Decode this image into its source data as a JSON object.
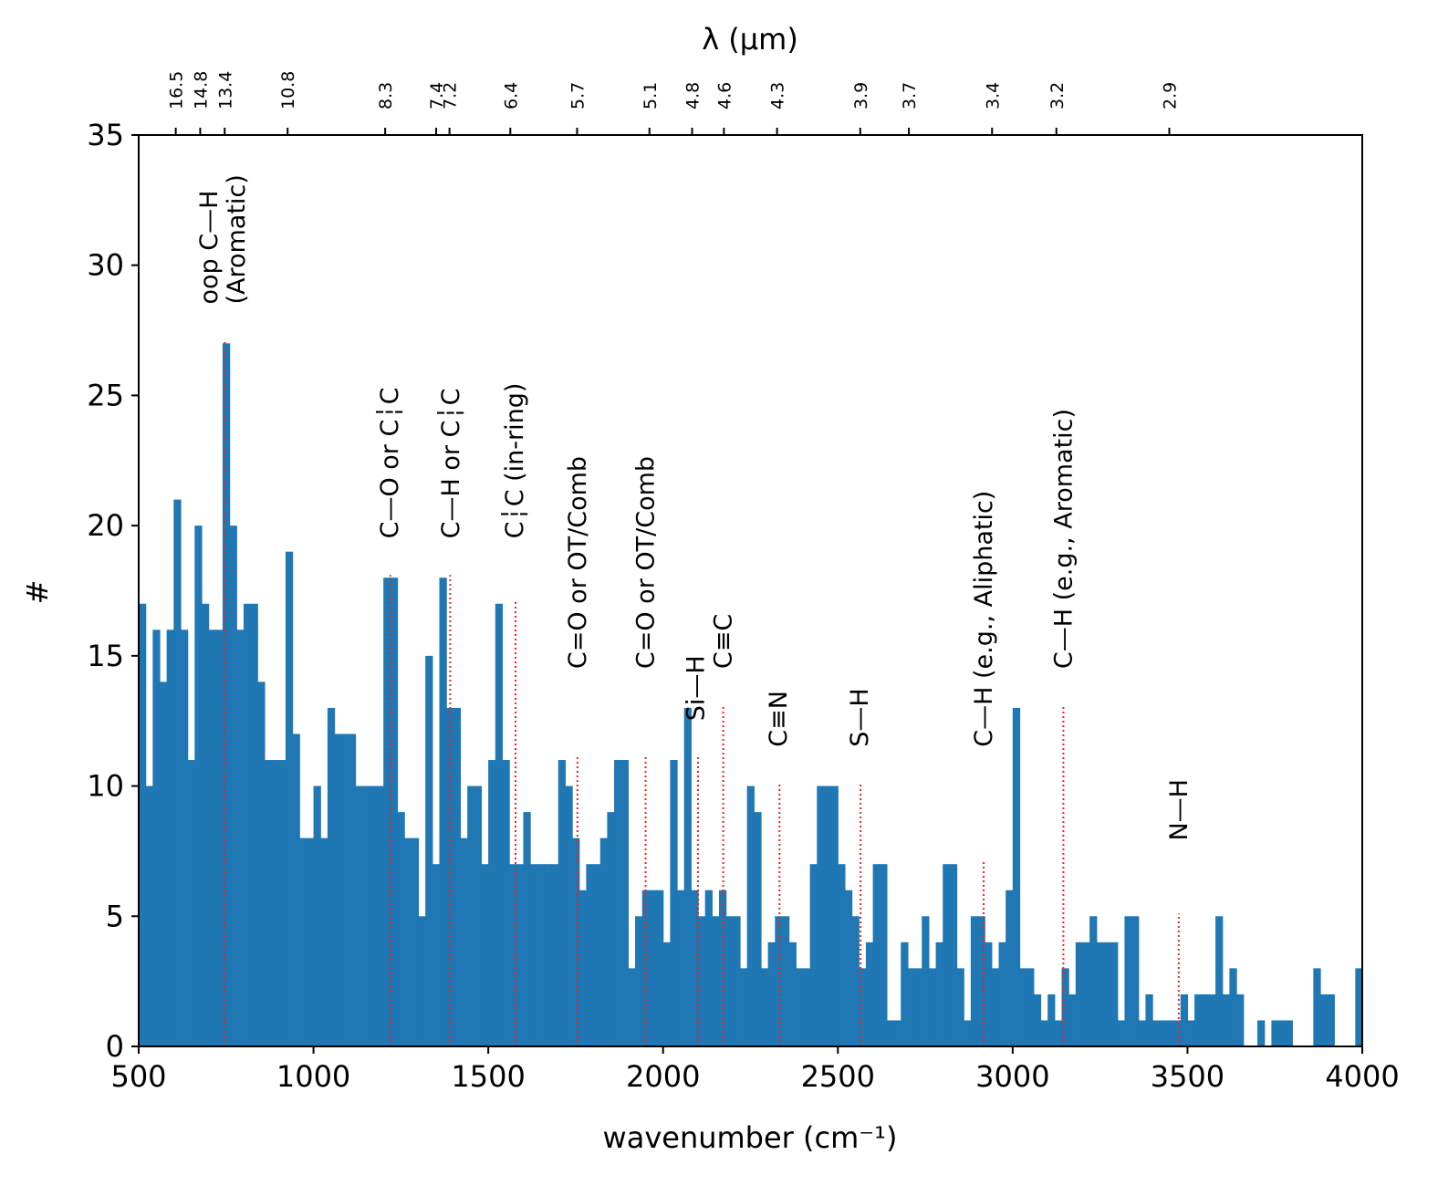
{
  "chart_data": {
    "type": "bar",
    "xlabel": "wavenumber (cm⁻¹)",
    "ylabel": "#",
    "top_xlabel": "λ (μm)",
    "xlim": [
      500,
      4000
    ],
    "ylim": [
      0,
      35
    ],
    "bin_width": 20,
    "x_ticks": [
      500,
      1000,
      1500,
      2000,
      2500,
      3000,
      3500,
      4000
    ],
    "x_tick_labels": [
      "500",
      "1000",
      "1500",
      "2000",
      "2500",
      "3000",
      "3500",
      "4000"
    ],
    "y_ticks": [
      0,
      5,
      10,
      15,
      20,
      25,
      30,
      35
    ],
    "y_tick_labels": [
      "0",
      "5",
      "10",
      "15",
      "20",
      "25",
      "30",
      "35"
    ],
    "bar_color": "#1f77b4",
    "marker_color": "#e8271e",
    "bins": [
      {
        "x": 500,
        "y": 17
      },
      {
        "x": 520,
        "y": 10
      },
      {
        "x": 540,
        "y": 16
      },
      {
        "x": 560,
        "y": 14
      },
      {
        "x": 580,
        "y": 16
      },
      {
        "x": 600,
        "y": 21
      },
      {
        "x": 620,
        "y": 16
      },
      {
        "x": 640,
        "y": 11
      },
      {
        "x": 660,
        "y": 20
      },
      {
        "x": 680,
        "y": 17
      },
      {
        "x": 700,
        "y": 16
      },
      {
        "x": 720,
        "y": 16
      },
      {
        "x": 740,
        "y": 27
      },
      {
        "x": 760,
        "y": 20
      },
      {
        "x": 780,
        "y": 16
      },
      {
        "x": 800,
        "y": 17
      },
      {
        "x": 820,
        "y": 17
      },
      {
        "x": 840,
        "y": 14
      },
      {
        "x": 860,
        "y": 11
      },
      {
        "x": 880,
        "y": 11
      },
      {
        "x": 900,
        "y": 11
      },
      {
        "x": 920,
        "y": 19
      },
      {
        "x": 940,
        "y": 12
      },
      {
        "x": 960,
        "y": 8
      },
      {
        "x": 980,
        "y": 8
      },
      {
        "x": 1000,
        "y": 10
      },
      {
        "x": 1020,
        "y": 8
      },
      {
        "x": 1040,
        "y": 13
      },
      {
        "x": 1060,
        "y": 12
      },
      {
        "x": 1080,
        "y": 12
      },
      {
        "x": 1100,
        "y": 12
      },
      {
        "x": 1120,
        "y": 10
      },
      {
        "x": 1140,
        "y": 10
      },
      {
        "x": 1160,
        "y": 10
      },
      {
        "x": 1180,
        "y": 10
      },
      {
        "x": 1200,
        "y": 18
      },
      {
        "x": 1220,
        "y": 18
      },
      {
        "x": 1240,
        "y": 9
      },
      {
        "x": 1260,
        "y": 8
      },
      {
        "x": 1280,
        "y": 8
      },
      {
        "x": 1300,
        "y": 5
      },
      {
        "x": 1320,
        "y": 15
      },
      {
        "x": 1340,
        "y": 7
      },
      {
        "x": 1360,
        "y": 18
      },
      {
        "x": 1380,
        "y": 13
      },
      {
        "x": 1400,
        "y": 13
      },
      {
        "x": 1420,
        "y": 8
      },
      {
        "x": 1440,
        "y": 10
      },
      {
        "x": 1460,
        "y": 10
      },
      {
        "x": 1480,
        "y": 7
      },
      {
        "x": 1500,
        "y": 11
      },
      {
        "x": 1520,
        "y": 17
      },
      {
        "x": 1540,
        "y": 11
      },
      {
        "x": 1560,
        "y": 7
      },
      {
        "x": 1580,
        "y": 7
      },
      {
        "x": 1600,
        "y": 9
      },
      {
        "x": 1620,
        "y": 7
      },
      {
        "x": 1640,
        "y": 7
      },
      {
        "x": 1660,
        "y": 7
      },
      {
        "x": 1680,
        "y": 7
      },
      {
        "x": 1700,
        "y": 11
      },
      {
        "x": 1720,
        "y": 10
      },
      {
        "x": 1740,
        "y": 8
      },
      {
        "x": 1760,
        "y": 6
      },
      {
        "x": 1780,
        "y": 7
      },
      {
        "x": 1800,
        "y": 7
      },
      {
        "x": 1820,
        "y": 8
      },
      {
        "x": 1840,
        "y": 9
      },
      {
        "x": 1860,
        "y": 11
      },
      {
        "x": 1880,
        "y": 11
      },
      {
        "x": 1900,
        "y": 3
      },
      {
        "x": 1920,
        "y": 5
      },
      {
        "x": 1940,
        "y": 6
      },
      {
        "x": 1960,
        "y": 6
      },
      {
        "x": 1980,
        "y": 6
      },
      {
        "x": 2000,
        "y": 4
      },
      {
        "x": 2020,
        "y": 11
      },
      {
        "x": 2040,
        "y": 6
      },
      {
        "x": 2060,
        "y": 13
      },
      {
        "x": 2080,
        "y": 6
      },
      {
        "x": 2100,
        "y": 5
      },
      {
        "x": 2120,
        "y": 6
      },
      {
        "x": 2140,
        "y": 5
      },
      {
        "x": 2160,
        "y": 6
      },
      {
        "x": 2180,
        "y": 5
      },
      {
        "x": 2200,
        "y": 5
      },
      {
        "x": 2220,
        "y": 3
      },
      {
        "x": 2240,
        "y": 10
      },
      {
        "x": 2260,
        "y": 9
      },
      {
        "x": 2280,
        "y": 3
      },
      {
        "x": 2300,
        "y": 4
      },
      {
        "x": 2320,
        "y": 5
      },
      {
        "x": 2340,
        "y": 5
      },
      {
        "x": 2360,
        "y": 4
      },
      {
        "x": 2380,
        "y": 3
      },
      {
        "x": 2400,
        "y": 3
      },
      {
        "x": 2420,
        "y": 7
      },
      {
        "x": 2440,
        "y": 10
      },
      {
        "x": 2460,
        "y": 10
      },
      {
        "x": 2480,
        "y": 10
      },
      {
        "x": 2500,
        "y": 7
      },
      {
        "x": 2520,
        "y": 6
      },
      {
        "x": 2540,
        "y": 5
      },
      {
        "x": 2560,
        "y": 3
      },
      {
        "x": 2580,
        "y": 4
      },
      {
        "x": 2600,
        "y": 7
      },
      {
        "x": 2620,
        "y": 7
      },
      {
        "x": 2640,
        "y": 1
      },
      {
        "x": 2660,
        "y": 1
      },
      {
        "x": 2680,
        "y": 4
      },
      {
        "x": 2700,
        "y": 3
      },
      {
        "x": 2720,
        "y": 3
      },
      {
        "x": 2740,
        "y": 5
      },
      {
        "x": 2760,
        "y": 3
      },
      {
        "x": 2780,
        "y": 4
      },
      {
        "x": 2800,
        "y": 7
      },
      {
        "x": 2820,
        "y": 7
      },
      {
        "x": 2840,
        "y": 3
      },
      {
        "x": 2860,
        "y": 1
      },
      {
        "x": 2880,
        "y": 5
      },
      {
        "x": 2900,
        "y": 5
      },
      {
        "x": 2920,
        "y": 4
      },
      {
        "x": 2940,
        "y": 3
      },
      {
        "x": 2960,
        "y": 4
      },
      {
        "x": 2980,
        "y": 6
      },
      {
        "x": 3000,
        "y": 13
      },
      {
        "x": 3020,
        "y": 3
      },
      {
        "x": 3040,
        "y": 3
      },
      {
        "x": 3060,
        "y": 2
      },
      {
        "x": 3080,
        "y": 1
      },
      {
        "x": 3100,
        "y": 2
      },
      {
        "x": 3120,
        "y": 1
      },
      {
        "x": 3140,
        "y": 3
      },
      {
        "x": 3160,
        "y": 2
      },
      {
        "x": 3180,
        "y": 4
      },
      {
        "x": 3200,
        "y": 4
      },
      {
        "x": 3220,
        "y": 5
      },
      {
        "x": 3240,
        "y": 4
      },
      {
        "x": 3260,
        "y": 4
      },
      {
        "x": 3280,
        "y": 4
      },
      {
        "x": 3300,
        "y": 1
      },
      {
        "x": 3320,
        "y": 5
      },
      {
        "x": 3340,
        "y": 5
      },
      {
        "x": 3360,
        "y": 1
      },
      {
        "x": 3380,
        "y": 2
      },
      {
        "x": 3400,
        "y": 1
      },
      {
        "x": 3420,
        "y": 1
      },
      {
        "x": 3440,
        "y": 1
      },
      {
        "x": 3460,
        "y": 1
      },
      {
        "x": 3480,
        "y": 2
      },
      {
        "x": 3500,
        "y": 1
      },
      {
        "x": 3520,
        "y": 2
      },
      {
        "x": 3540,
        "y": 2
      },
      {
        "x": 3560,
        "y": 2
      },
      {
        "x": 3580,
        "y": 5
      },
      {
        "x": 3600,
        "y": 2
      },
      {
        "x": 3620,
        "y": 3
      },
      {
        "x": 3640,
        "y": 2
      },
      {
        "x": 3660,
        "y": 0
      },
      {
        "x": 3680,
        "y": 0
      },
      {
        "x": 3700,
        "y": 1
      },
      {
        "x": 3720,
        "y": 0
      },
      {
        "x": 3740,
        "y": 1
      },
      {
        "x": 3760,
        "y": 1
      },
      {
        "x": 3780,
        "y": 1
      },
      {
        "x": 3800,
        "y": 0
      },
      {
        "x": 3820,
        "y": 0
      },
      {
        "x": 3840,
        "y": 0
      },
      {
        "x": 3860,
        "y": 3
      },
      {
        "x": 3880,
        "y": 2
      },
      {
        "x": 3900,
        "y": 2
      },
      {
        "x": 3920,
        "y": 0
      },
      {
        "x": 3940,
        "y": 0
      },
      {
        "x": 3960,
        "y": 0
      },
      {
        "x": 3980,
        "y": 3
      }
    ],
    "top_axis_ticks": [
      {
        "label": "16.5",
        "x": 606
      },
      {
        "label": "14.8",
        "x": 676
      },
      {
        "label": "13.4",
        "x": 746
      },
      {
        "label": "10.8",
        "x": 926
      },
      {
        "label": "8.3",
        "x": 1205
      },
      {
        "label": "7.4",
        "x": 1351
      },
      {
        "label": "7.2",
        "x": 1389
      },
      {
        "label": "6.4",
        "x": 1563
      },
      {
        "label": "5.7",
        "x": 1754
      },
      {
        "label": "5.1",
        "x": 1961
      },
      {
        "label": "4.8",
        "x": 2083
      },
      {
        "label": "4.6",
        "x": 2174
      },
      {
        "label": "4.3",
        "x": 2326
      },
      {
        "label": "3.9",
        "x": 2564
      },
      {
        "label": "3.7",
        "x": 2703
      },
      {
        "label": "3.4",
        "x": 2941
      },
      {
        "label": "3.2",
        "x": 3125
      },
      {
        "label": "2.9",
        "x": 3448
      }
    ],
    "markers": [
      {
        "x": 746,
        "top": 27
      },
      {
        "x": 1220,
        "top": 18
      },
      {
        "x": 1391,
        "top": 18
      },
      {
        "x": 1578,
        "top": 17
      },
      {
        "x": 1755,
        "top": 11
      },
      {
        "x": 1950,
        "top": 11
      },
      {
        "x": 2100,
        "top": 11
      },
      {
        "x": 2172,
        "top": 13
      },
      {
        "x": 2333,
        "top": 10
      },
      {
        "x": 2565,
        "top": 10
      },
      {
        "x": 2917,
        "top": 7
      },
      {
        "x": 3145,
        "top": 13
      },
      {
        "x": 3475,
        "top": 5
      }
    ],
    "annotations": [
      {
        "lines": [
          "oop C—H",
          "(Aromatic)"
        ],
        "x": 740,
        "y_bottom": 28.5
      },
      {
        "lines": [
          "C—O or C┆C"
        ],
        "x": 1218,
        "y_bottom": 19.5
      },
      {
        "lines": [
          "C—H or C┆C"
        ],
        "x": 1393,
        "y_bottom": 19.5
      },
      {
        "lines": [
          "C┆C (in-ring)"
        ],
        "x": 1575,
        "y_bottom": 19.5
      },
      {
        "lines": [
          "C=O or OT/Comb"
        ],
        "x": 1755,
        "y_bottom": 14.5
      },
      {
        "lines": [
          "C=O or OT/Comb"
        ],
        "x": 1950,
        "y_bottom": 14.5
      },
      {
        "lines": [
          "Si—H"
        ],
        "x": 2093,
        "y_bottom": 12.5
      },
      {
        "lines": [
          "C≡C"
        ],
        "x": 2172,
        "y_bottom": 14.5
      },
      {
        "lines": [
          "C≡N"
        ],
        "x": 2330,
        "y_bottom": 11.5
      },
      {
        "lines": [
          "S—H"
        ],
        "x": 2562,
        "y_bottom": 11.5
      },
      {
        "lines": [
          "C—H (e.g., Aliphatic)"
        ],
        "x": 2917,
        "y_bottom": 11.5
      },
      {
        "lines": [
          "C—H (e.g., Aromatic)"
        ],
        "x": 3145,
        "y_bottom": 14.5
      },
      {
        "lines": [
          "N—H"
        ],
        "x": 3475,
        "y_bottom": 7.9
      }
    ]
  }
}
